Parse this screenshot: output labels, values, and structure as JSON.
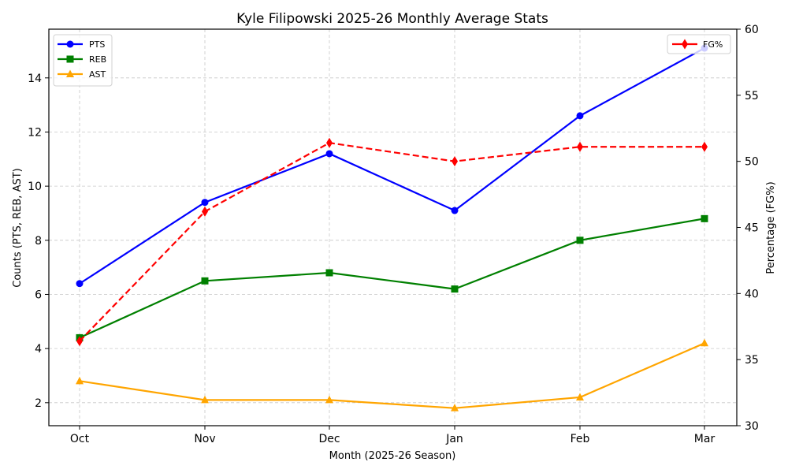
{
  "chart_data": {
    "type": "line",
    "title": "Kyle Filipowski 2025-26 Monthly Average Stats",
    "xlabel": "Month (2025-26 Season)",
    "ylabel": "Counts (PTS, REB, AST)",
    "y2label": "Percentage (FG%)",
    "categories": [
      "Oct",
      "Nov",
      "Dec",
      "Jan",
      "Feb",
      "Mar"
    ],
    "ylim": [
      1.15,
      15.8
    ],
    "yticks": [
      2,
      4,
      6,
      8,
      10,
      12,
      14
    ],
    "y2lim": [
      30,
      60
    ],
    "y2ticks": [
      30,
      35,
      40,
      45,
      50,
      55,
      60
    ],
    "grid": true,
    "legend_left_placement": "top-left",
    "legend_right_placement": "top-right",
    "series": [
      {
        "name": "PTS",
        "axis": "left",
        "color": "#0000ff",
        "marker": "circle",
        "linestyle": "solid",
        "values": [
          6.4,
          9.4,
          11.2,
          9.1,
          12.6,
          15.1
        ]
      },
      {
        "name": "REB",
        "axis": "left",
        "color": "#008000",
        "marker": "square",
        "linestyle": "solid",
        "values": [
          4.4,
          6.5,
          6.8,
          6.2,
          8.0,
          8.8
        ]
      },
      {
        "name": "AST",
        "axis": "left",
        "color": "#ffa500",
        "marker": "triangle",
        "linestyle": "solid",
        "values": [
          2.8,
          2.1,
          2.1,
          1.8,
          2.2,
          4.2
        ]
      },
      {
        "name": "FG%",
        "axis": "right",
        "color": "#ff0000",
        "marker": "diamond",
        "linestyle": "dashed",
        "values": [
          36.4,
          46.2,
          51.4,
          50.0,
          51.1,
          51.1
        ]
      }
    ]
  }
}
